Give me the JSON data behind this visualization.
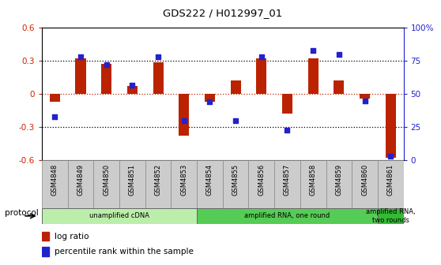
{
  "title": "GDS222 / H012997_01",
  "samples": [
    "GSM4848",
    "GSM4849",
    "GSM4850",
    "GSM4851",
    "GSM4852",
    "GSM4853",
    "GSM4854",
    "GSM4855",
    "GSM4856",
    "GSM4857",
    "GSM4858",
    "GSM4859",
    "GSM4860",
    "GSM4861"
  ],
  "log_ratio": [
    -0.07,
    0.32,
    0.27,
    0.07,
    0.285,
    -0.38,
    -0.07,
    0.12,
    0.32,
    -0.18,
    0.325,
    0.12,
    -0.04,
    -0.575
  ],
  "percentile": [
    33,
    78,
    72,
    57,
    78,
    30,
    44,
    30,
    78,
    23,
    83,
    80,
    45,
    3
  ],
  "ylim_left": [
    -0.6,
    0.6
  ],
  "ylim_right": [
    0,
    100
  ],
  "yticks_left": [
    -0.6,
    -0.3,
    0.0,
    0.3,
    0.6
  ],
  "ytick_labels_left": [
    "-0.6",
    "-0.3",
    "0",
    "0.3",
    "0.6"
  ],
  "yticks_right": [
    0,
    25,
    50,
    75,
    100
  ],
  "ytick_labels_right": [
    "0",
    "25",
    "50",
    "75",
    "100%"
  ],
  "hlines_black": [
    0.3,
    -0.3
  ],
  "hline_red": 0.0,
  "bar_color": "#bb2200",
  "scatter_color": "#2222cc",
  "scatter_size": 18,
  "bar_width": 0.4,
  "protocol_groups": [
    {
      "label": "unamplified cDNA",
      "start": 0,
      "end": 6,
      "color": "#bbeeaa"
    },
    {
      "label": "amplified RNA, one round",
      "start": 6,
      "end": 13,
      "color": "#55cc55"
    },
    {
      "label": "amplified RNA,\ntwo rounds",
      "start": 13,
      "end": 14,
      "color": "#33bb33"
    }
  ],
  "protocol_label": "protocol",
  "sample_box_color": "#cccccc",
  "sample_box_edge": "#888888",
  "background_color": "#ffffff",
  "left_axis_color": "#cc2200",
  "right_axis_color": "#2222cc",
  "legend_log_ratio": "log ratio",
  "legend_percentile": "percentile rank within the sample"
}
